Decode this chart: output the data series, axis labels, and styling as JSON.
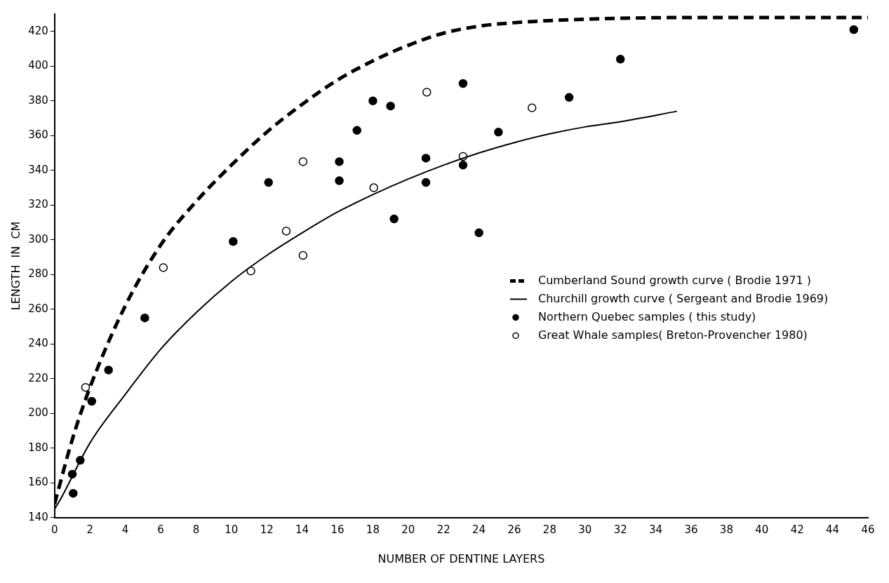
{
  "chart_data": {
    "type": "scatter",
    "xlabel": "NUMBER OF DENTINE LAYERS",
    "ylabel": "LENGTH  IN  CM",
    "xlim": [
      0,
      46
    ],
    "ylim": [
      140,
      430
    ],
    "xticks": [
      0,
      2,
      4,
      6,
      8,
      10,
      12,
      14,
      16,
      18,
      20,
      22,
      24,
      26,
      28,
      30,
      32,
      34,
      36,
      38,
      40,
      42,
      44,
      46
    ],
    "yticks": [
      140,
      160,
      180,
      200,
      220,
      240,
      260,
      280,
      300,
      320,
      340,
      360,
      380,
      400,
      420
    ],
    "grid": false,
    "legend": "right",
    "series": [
      {
        "name": "Cumberland Sound growth curve ( Brodie 1971 )",
        "type": "line",
        "line_style": "dashed",
        "marker": "none",
        "color": "#000000",
        "x": [
          0,
          1,
          2,
          4,
          6,
          8,
          10,
          12,
          14,
          16,
          18,
          20,
          22,
          24,
          26,
          30,
          36,
          46
        ],
        "values": [
          148,
          185,
          215,
          262,
          297,
          322,
          343,
          362,
          378,
          392,
          403,
          412,
          419,
          423,
          425,
          427,
          428,
          428
        ]
      },
      {
        "name": "Churchill growth curve ( Sergeant and Brodie 1969)",
        "type": "line",
        "line_style": "solid",
        "marker": "none",
        "color": "#000000",
        "x": [
          0,
          0.3,
          2,
          4,
          6,
          8,
          10,
          12,
          14,
          16,
          18,
          20,
          22,
          24,
          26,
          28,
          30,
          32,
          35.2
        ],
        "values": [
          145,
          150,
          183,
          211,
          237,
          258,
          276,
          291,
          304,
          316,
          326,
          335,
          343,
          350,
          356,
          361,
          365,
          368,
          374
        ]
      },
      {
        "name": "Northern Quebec samples ( this study)",
        "type": "scatter",
        "marker": "circle",
        "color": "#000000",
        "x": [
          1,
          1.05,
          1.45,
          2.1,
          3.05,
          5.1,
          10.1,
          12.1,
          16.1,
          16.1,
          17.1,
          18,
          19,
          19.2,
          21,
          21,
          23.1,
          23.1,
          24,
          25.1,
          29.1,
          32,
          45.2
        ],
        "values": [
          165,
          154,
          173,
          207,
          225,
          255,
          299,
          333,
          345,
          334,
          363,
          380,
          377,
          312,
          347,
          333,
          343,
          390,
          304,
          362,
          382,
          404,
          421
        ]
      },
      {
        "name": "Great Whale samples( Breton-Provencher 1980)",
        "type": "scatter",
        "marker": "circle",
        "color": "#ffffff",
        "x": [
          1.75,
          6.15,
          11.1,
          13.1,
          14.05,
          14.05,
          18.05,
          21.05,
          23.1,
          27
        ],
        "values": [
          215,
          284,
          282,
          305,
          291,
          345,
          330,
          385,
          348,
          376
        ]
      }
    ]
  }
}
